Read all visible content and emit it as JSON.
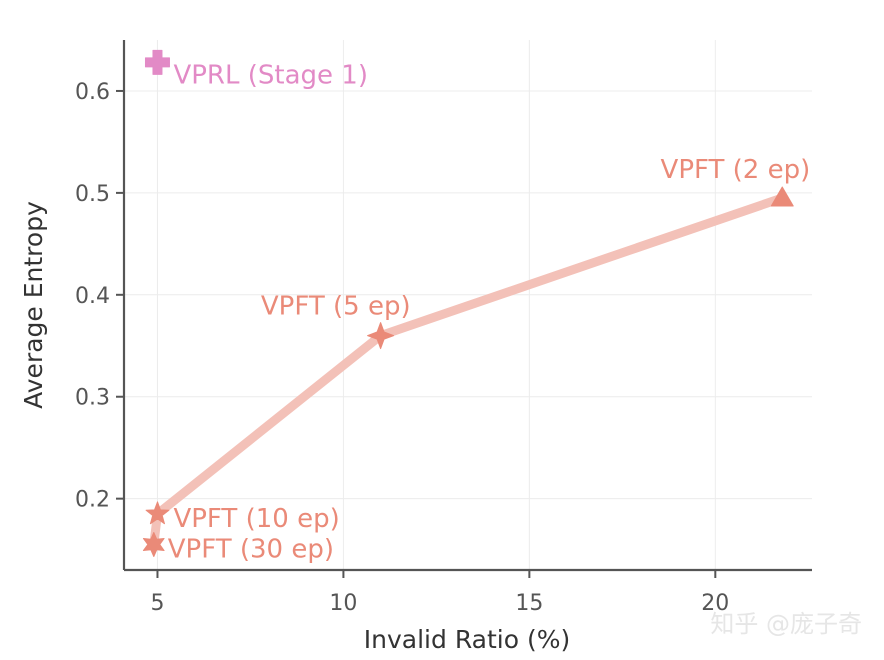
{
  "chart_data": {
    "type": "scatter",
    "title": "",
    "xlabel": "Invalid Ratio (%)",
    "ylabel": "Average Entropy",
    "xlim": [
      4.1,
      22.6
    ],
    "ylim": [
      0.13,
      0.65
    ],
    "xticks": [
      5,
      10,
      15,
      20
    ],
    "yticks": [
      0.2,
      0.3,
      0.4,
      0.5,
      0.6
    ],
    "xtick_labels": [
      "5",
      "10",
      "15",
      "20"
    ],
    "ytick_labels": [
      "0.2",
      "0.3",
      "0.4",
      "0.5",
      "0.6"
    ],
    "grid": true,
    "series": [
      {
        "name": "VPFT",
        "color": "#ea8a78",
        "line_color": "#f3c1b8",
        "points": [
          {
            "x": 21.8,
            "y": 0.495,
            "label": "VPFT (2 ep)",
            "marker": "triangle"
          },
          {
            "x": 11.0,
            "y": 0.36,
            "label": "VPFT (5 ep)",
            "marker": "star4"
          },
          {
            "x": 5.0,
            "y": 0.185,
            "label": "VPFT (10 ep)",
            "marker": "star5"
          },
          {
            "x": 4.9,
            "y": 0.155,
            "label": "VPFT (30 ep)",
            "marker": "star6"
          }
        ]
      },
      {
        "name": "VPRL",
        "color": "#e28ac6",
        "points": [
          {
            "x": 5.0,
            "y": 0.628,
            "label": "VPRL (Stage 1)",
            "marker": "plus"
          }
        ]
      }
    ]
  },
  "watermark": "知乎 @庞子奇"
}
